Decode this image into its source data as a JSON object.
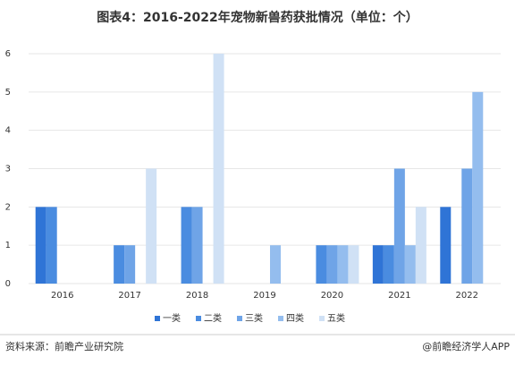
{
  "chart_data": {
    "type": "bar",
    "title": "图表4：2016-2022年宠物新兽药获批情况（单位：个）",
    "categories": [
      "2016",
      "2017",
      "2018",
      "2019",
      "2020",
      "2021",
      "2022"
    ],
    "series": [
      {
        "name": "一类",
        "color": "#2f74d6",
        "values": [
          2,
          0,
          0,
          0,
          0,
          1,
          2
        ]
      },
      {
        "name": "二类",
        "color": "#4a8ce0",
        "values": [
          2,
          1,
          2,
          0,
          1,
          1,
          0
        ]
      },
      {
        "name": "三类",
        "color": "#6fa4e7",
        "values": [
          0,
          1,
          2,
          0,
          1,
          3,
          3
        ]
      },
      {
        "name": "四类",
        "color": "#94bdee",
        "values": [
          0,
          0,
          0,
          1,
          1,
          1,
          5
        ]
      },
      {
        "name": "五类",
        "color": "#d0e1f5",
        "values": [
          0,
          3,
          6,
          0,
          1,
          2,
          0
        ]
      }
    ],
    "ylim": [
      0,
      6
    ],
    "yticks": [
      0,
      1,
      2,
      3,
      4,
      5,
      6
    ],
    "grid": true,
    "legend": "bottom",
    "source": "资料来源：前瞻产业研究院",
    "credit": "@前瞻经济学人APP"
  }
}
